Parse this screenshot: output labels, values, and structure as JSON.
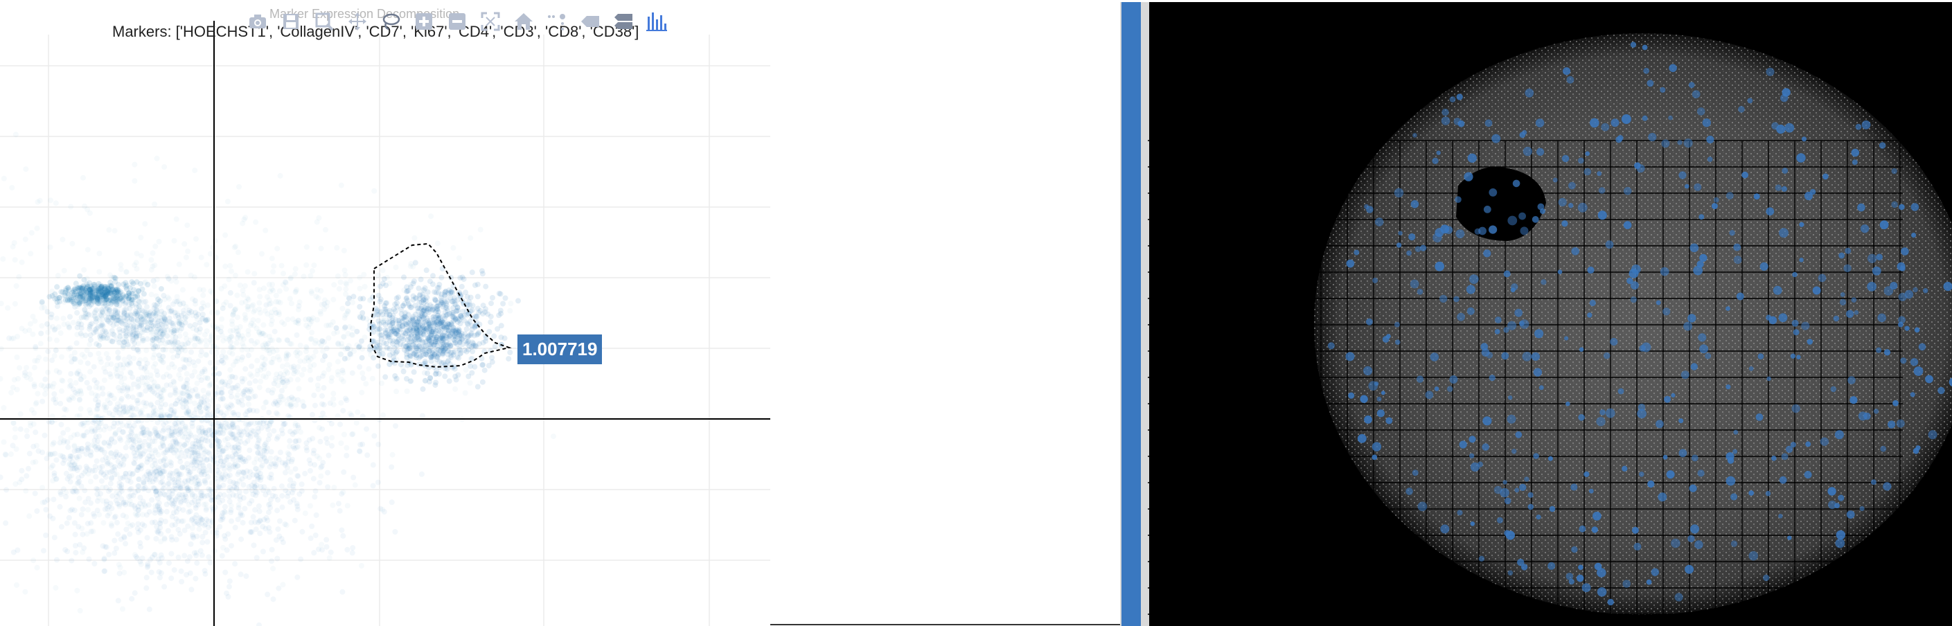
{
  "plot": {
    "title": "Marker Expression Decomposition",
    "markers_prefix": "Markers: ['HOECHST1', 'CollagenIV', 'CD7', 'Ki67', 'CD4', 'CD3', 'CD8', 'CD38']",
    "hover_value": "1.007719",
    "point_color": "#1f77b4",
    "lasso_color": "#000000"
  },
  "modebar": {
    "buttons": [
      {
        "name": "camera-icon",
        "label": "Download plot as png"
      },
      {
        "name": "save-icon",
        "label": "Save"
      },
      {
        "name": "zoom-icon",
        "label": "Zoom"
      },
      {
        "name": "pan-icon",
        "label": "Pan"
      },
      {
        "name": "lasso-icon",
        "label": "Lasso Select"
      },
      {
        "name": "zoom-in-icon",
        "label": "Zoom in"
      },
      {
        "name": "zoom-out-icon",
        "label": "Zoom out"
      },
      {
        "name": "autoscale-icon",
        "label": "Autoscale"
      },
      {
        "name": "home-icon",
        "label": "Reset axes"
      },
      {
        "name": "spike-lines-icon",
        "label": "Toggle Spike Lines"
      },
      {
        "name": "hover-closest-icon",
        "label": "Show closest data on hover"
      },
      {
        "name": "hover-compare-icon",
        "label": "Compare data on hover"
      },
      {
        "name": "plotly-logo-icon",
        "label": "Produced with Plotly"
      }
    ]
  },
  "image_view": {
    "background": "#000000",
    "overlay_color": "#3a78c0"
  }
}
